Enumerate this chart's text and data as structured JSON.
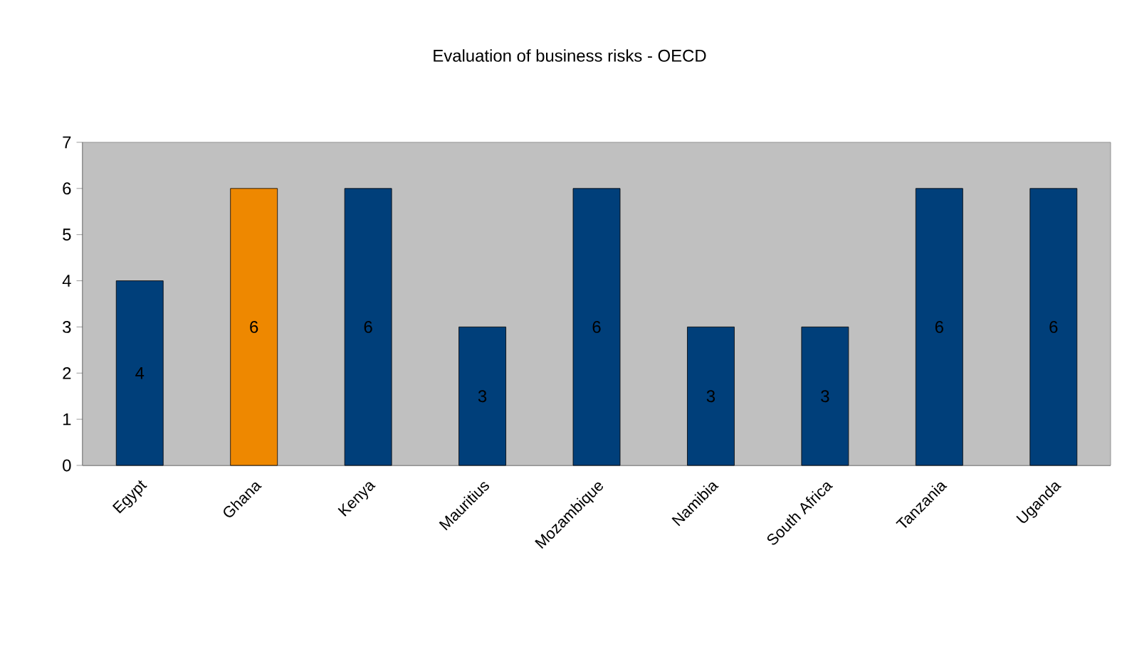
{
  "chart_data": {
    "type": "bar",
    "title": "Evaluation of business risks - OECD",
    "categories": [
      "Egypt",
      "Ghana",
      "Kenya",
      "Mauritius",
      "Mozambique",
      "Namibia",
      "South Africa",
      "Tanzania",
      "Uganda"
    ],
    "values": [
      4,
      6,
      6,
      3,
      6,
      3,
      3,
      6,
      6
    ],
    "colors": [
      "#003f7a",
      "#ee8800",
      "#003f7a",
      "#003f7a",
      "#003f7a",
      "#003f7a",
      "#003f7a",
      "#003f7a",
      "#003f7a"
    ],
    "ylim": [
      0,
      7
    ],
    "yticks": [
      0,
      1,
      2,
      3,
      4,
      5,
      6,
      7
    ],
    "data_labels": true,
    "grid": false
  }
}
